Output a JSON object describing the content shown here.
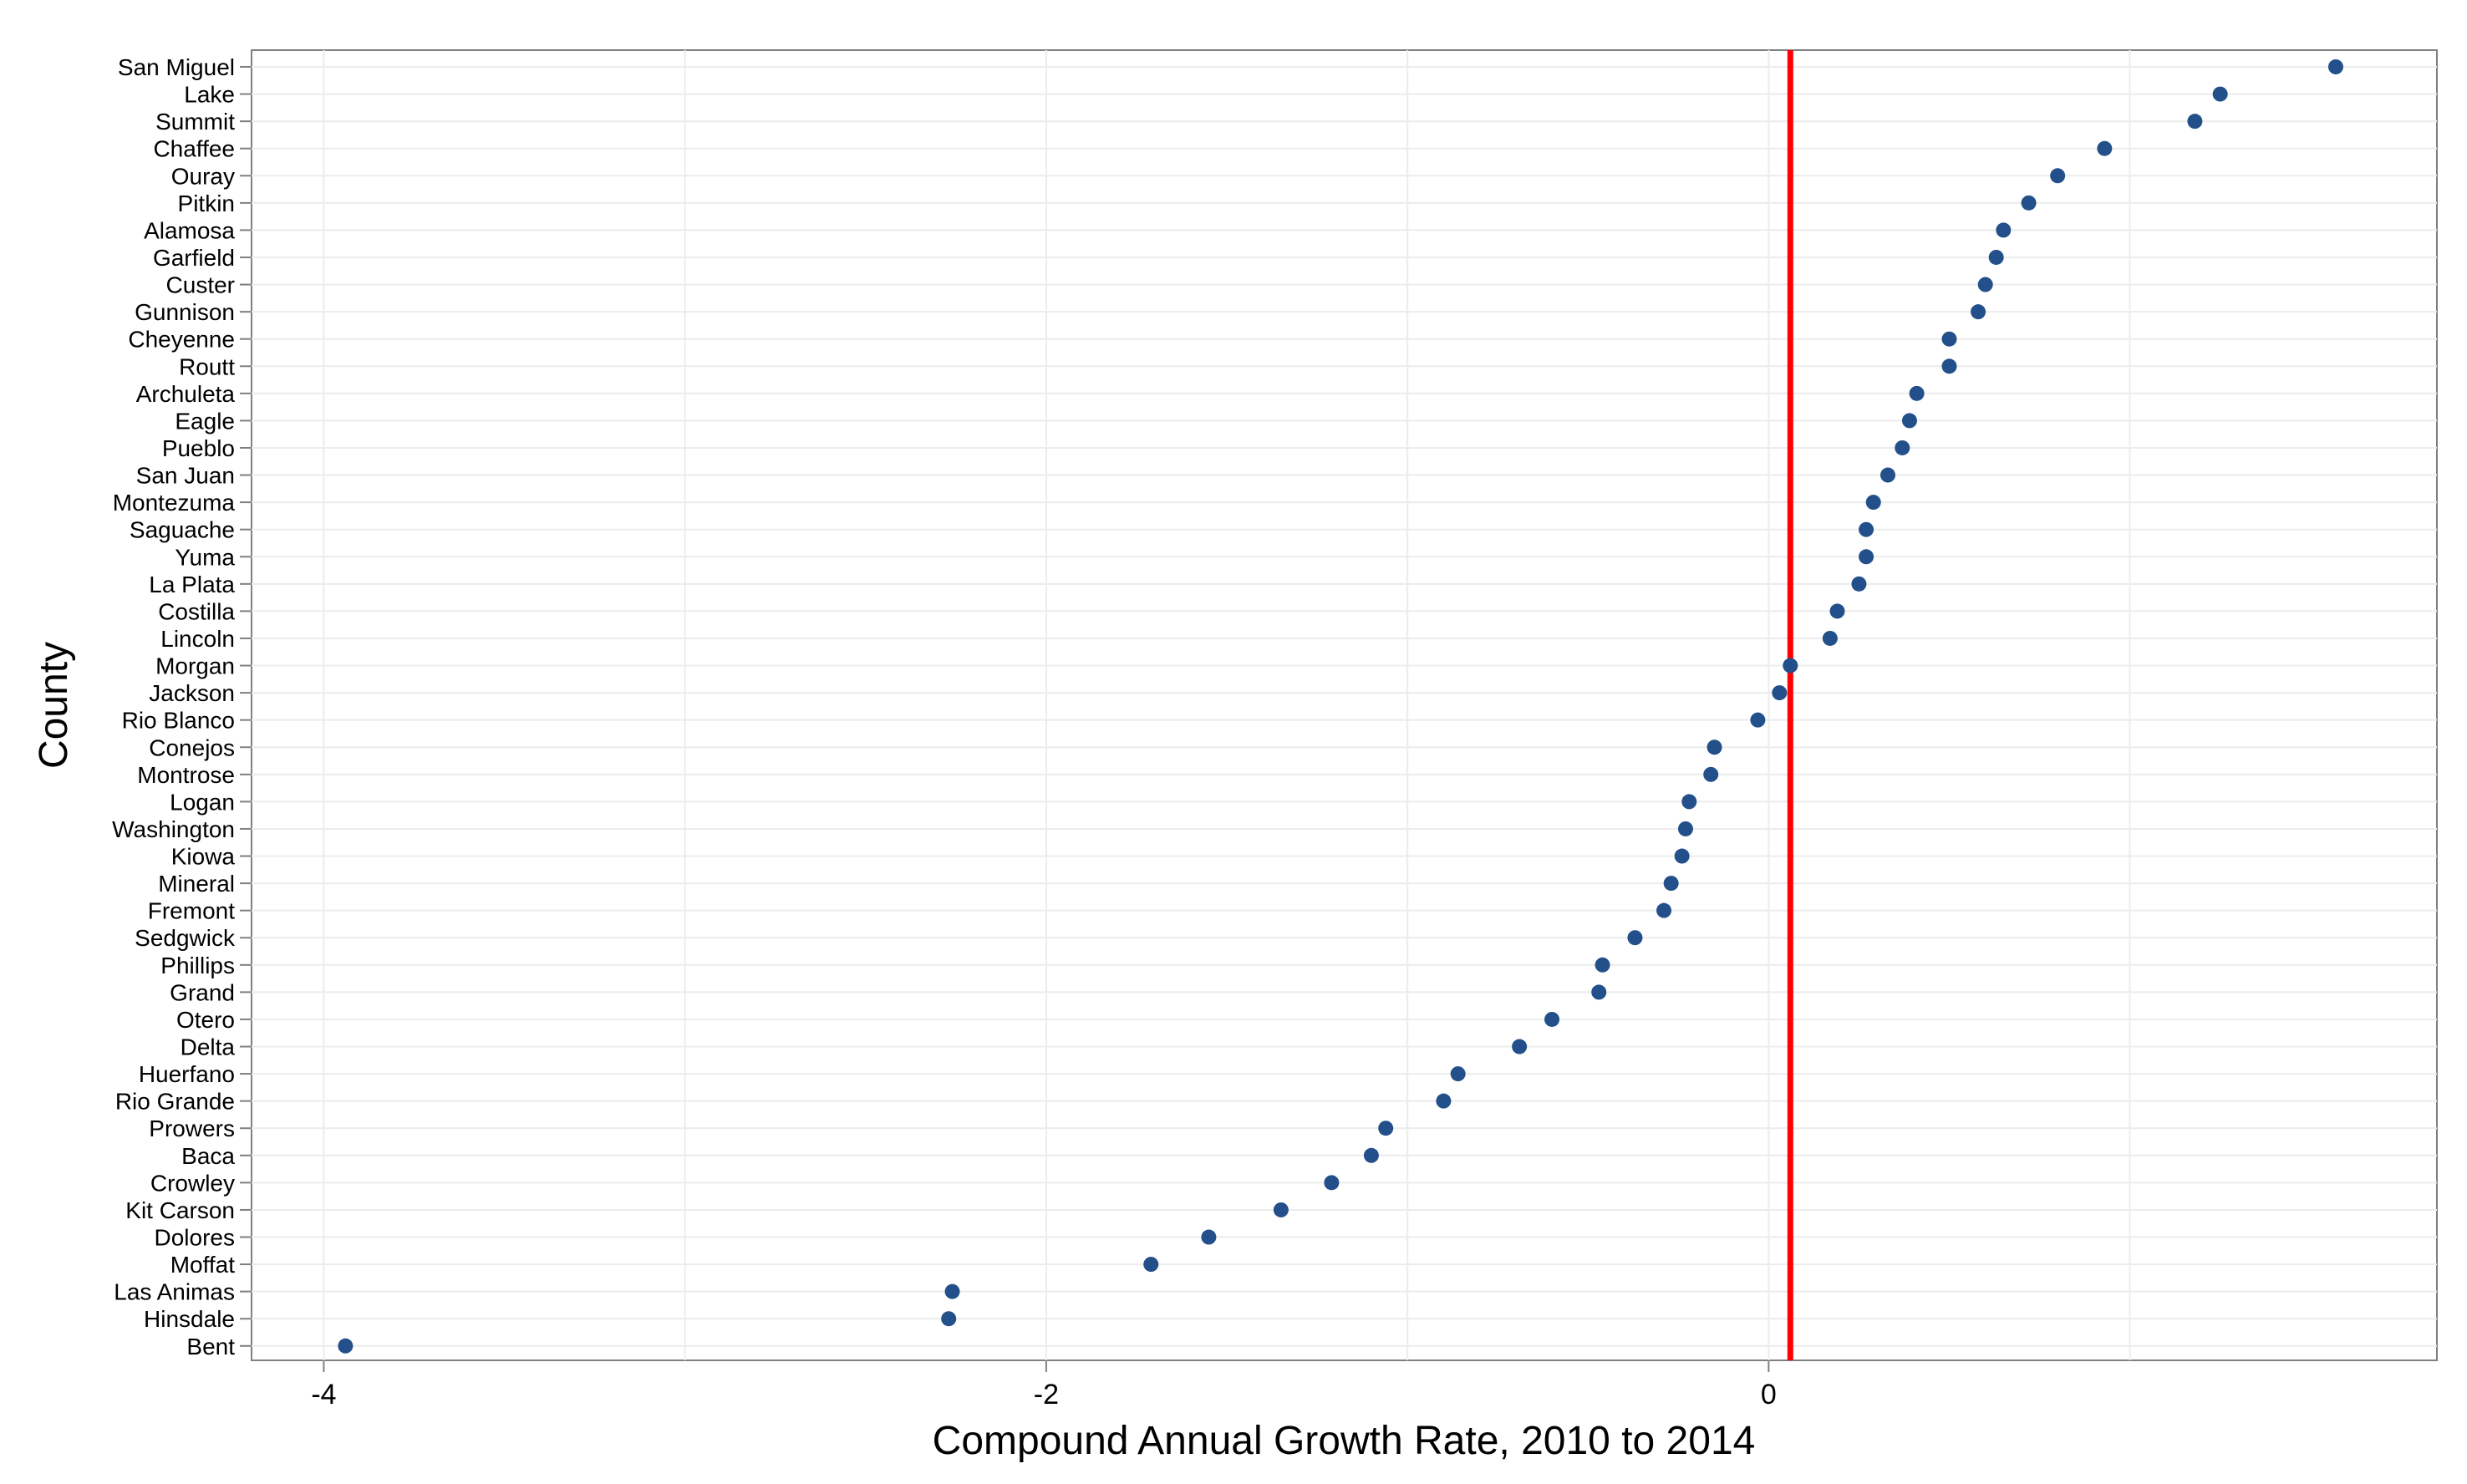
{
  "chart_data": {
    "type": "scatter",
    "title": "",
    "xlabel": "Compound Annual Growth Rate, 2010 to 2014",
    "ylabel": "County",
    "xlim": [
      -4.2,
      1.85
    ],
    "x_ticks": [
      -4,
      -2,
      0
    ],
    "grid": true,
    "legend": "none",
    "reference_line": {
      "x": 0.06,
      "color": "#ff0000"
    },
    "point_color": "#23508a",
    "categories": [
      "San Miguel",
      "Lake",
      "Summit",
      "Chaffee",
      "Ouray",
      "Pitkin",
      "Alamosa",
      "Garfield",
      "Custer",
      "Gunnison",
      "Cheyenne",
      "Routt",
      "Archuleta",
      "Eagle",
      "Pueblo",
      "San Juan",
      "Montezuma",
      "Saguache",
      "Yuma",
      "La Plata",
      "Costilla",
      "Lincoln",
      "Morgan",
      "Jackson",
      "Rio Blanco",
      "Conejos",
      "Montrose",
      "Logan",
      "Washington",
      "Kiowa",
      "Mineral",
      "Fremont",
      "Sedgwick",
      "Phillips",
      "Grand",
      "Otero",
      "Delta",
      "Huerfano",
      "Rio Grande",
      "Prowers",
      "Baca",
      "Crowley",
      "Kit Carson",
      "Dolores",
      "Moffat",
      "Las Animas",
      "Hinsdale",
      "Bent"
    ],
    "values": [
      1.57,
      1.25,
      1.18,
      0.93,
      0.8,
      0.72,
      0.65,
      0.63,
      0.6,
      0.58,
      0.5,
      0.5,
      0.41,
      0.39,
      0.37,
      0.33,
      0.29,
      0.27,
      0.27,
      0.25,
      0.19,
      0.17,
      0.06,
      0.03,
      -0.03,
      -0.15,
      -0.16,
      -0.22,
      -0.23,
      -0.24,
      -0.27,
      -0.29,
      -0.37,
      -0.46,
      -0.47,
      -0.6,
      -0.69,
      -0.86,
      -0.9,
      -1.06,
      -1.1,
      -1.21,
      -1.35,
      -1.55,
      -1.71,
      -2.26,
      -2.27,
      -3.94
    ]
  }
}
